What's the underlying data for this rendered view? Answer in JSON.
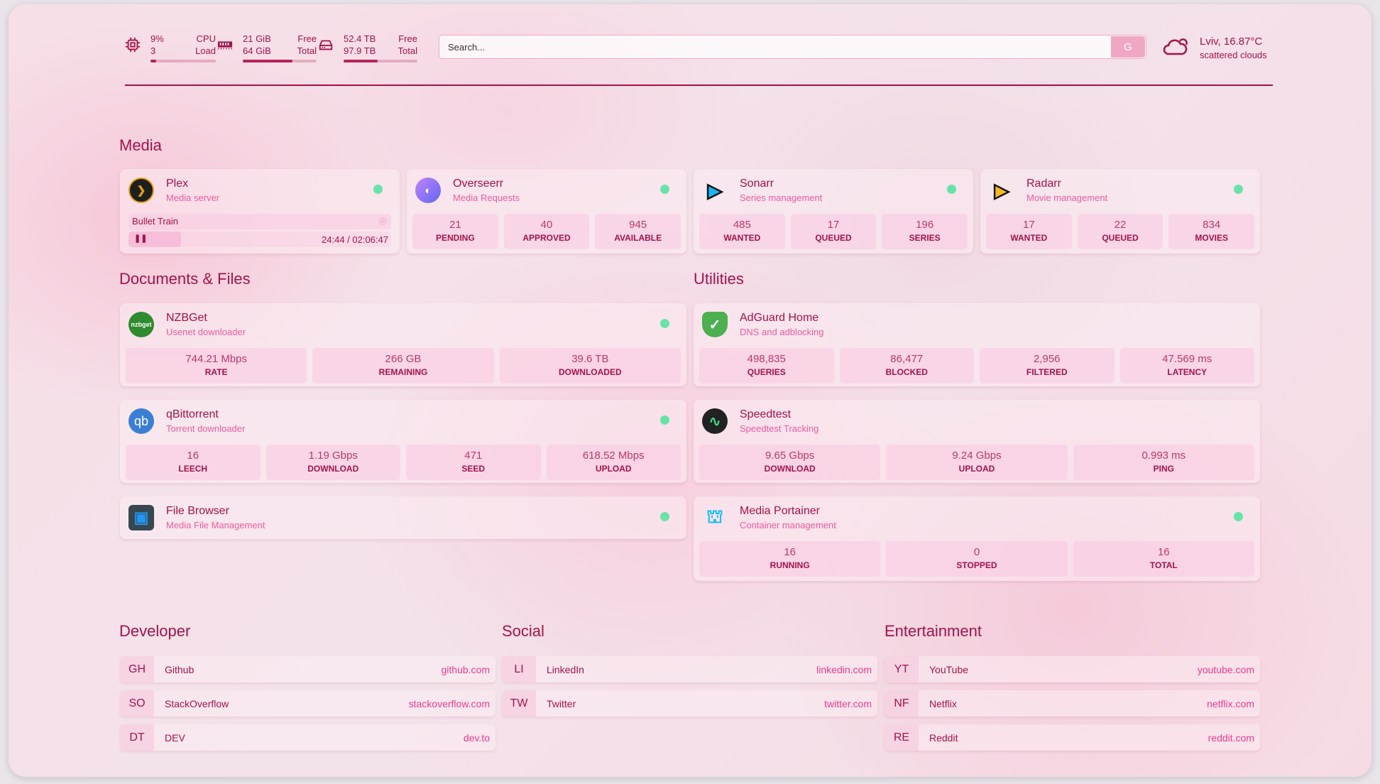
{
  "resources": {
    "cpu": {
      "icon": "cpu-icon",
      "value1": "9%",
      "value2": "3",
      "label1": "CPU",
      "label2": "Load",
      "percent": 9
    },
    "memory": {
      "icon": "memory-icon",
      "value1": "21 GiB",
      "value2": "64 GiB",
      "label1": "Free",
      "label2": "Total",
      "percent": 67
    },
    "disk": {
      "icon": "disk-icon",
      "value1": "52.4 TB",
      "value2": "97.9 TB",
      "label1": "Free",
      "label2": "Total",
      "percent": 46
    }
  },
  "search": {
    "placeholder": "Search...",
    "button": "G"
  },
  "weather": {
    "icon": "cloud-icon",
    "location_temp": "Lviv, 16.87°C",
    "condition": "scattered clouds"
  },
  "colors": {
    "accent": "#a3124a",
    "subtitle": "#ec5ba0",
    "status_ok": "#68e3a8"
  },
  "sections": {
    "media": "Media",
    "documents": "Documents & Files",
    "utilities": "Utilities",
    "developer": "Developer",
    "social": "Social",
    "entertainment": "Entertainment"
  },
  "media": [
    {
      "name": "Plex",
      "desc": "Media server",
      "icon": "plex-icon",
      "status": true,
      "now_playing": {
        "title": "Bullet Train",
        "time": "24:44 / 02:06:47",
        "progress": 20
      }
    },
    {
      "name": "Overseerr",
      "desc": "Media Requests",
      "icon": "overseerr-icon",
      "status": true,
      "stats": [
        {
          "value": "21",
          "label": "PENDING"
        },
        {
          "value": "40",
          "label": "APPROVED"
        },
        {
          "value": "945",
          "label": "AVAILABLE"
        }
      ]
    },
    {
      "name": "Sonarr",
      "desc": "Series management",
      "icon": "sonarr-icon",
      "status": true,
      "stats": [
        {
          "value": "485",
          "label": "WANTED"
        },
        {
          "value": "17",
          "label": "QUEUED"
        },
        {
          "value": "196",
          "label": "SERIES"
        }
      ]
    },
    {
      "name": "Radarr",
      "desc": "Movie management",
      "icon": "radarr-icon",
      "status": true,
      "stats": [
        {
          "value": "17",
          "label": "WANTED"
        },
        {
          "value": "22",
          "label": "QUEUED"
        },
        {
          "value": "834",
          "label": "MOVIES"
        }
      ]
    }
  ],
  "documents": [
    {
      "name": "NZBGet",
      "desc": "Usenet downloader",
      "icon": "nzbget-icon",
      "icon_text": "nzbget",
      "status": true,
      "stats": [
        {
          "value": "744.21 Mbps",
          "label": "RATE"
        },
        {
          "value": "266 GB",
          "label": "REMAINING"
        },
        {
          "value": "39.6 TB",
          "label": "DOWNLOADED"
        }
      ]
    },
    {
      "name": "qBittorrent",
      "desc": "Torrent downloader",
      "icon": "qbittorrent-icon",
      "icon_text": "qb",
      "status": true,
      "stats": [
        {
          "value": "16",
          "label": "LEECH"
        },
        {
          "value": "1.19 Gbps",
          "label": "DOWNLOAD"
        },
        {
          "value": "471",
          "label": "SEED"
        },
        {
          "value": "618.52 Mbps",
          "label": "UPLOAD"
        }
      ]
    },
    {
      "name": "File Browser",
      "desc": "Media File Management",
      "icon": "file-browser-icon",
      "status": true
    }
  ],
  "utilities": [
    {
      "name": "AdGuard Home",
      "desc": "DNS and adblocking",
      "icon": "adguard-shield-icon",
      "status": false,
      "stats": [
        {
          "value": "498,835",
          "label": "QUERIES"
        },
        {
          "value": "86,477",
          "label": "BLOCKED"
        },
        {
          "value": "2,956",
          "label": "FILTERED"
        },
        {
          "value": "47.569 ms",
          "label": "LATENCY"
        }
      ]
    },
    {
      "name": "Speedtest",
      "desc": "Speedtest Tracking",
      "icon": "speedtest-icon",
      "status": false,
      "stats": [
        {
          "value": "9.65 Gbps",
          "label": "DOWNLOAD"
        },
        {
          "value": "9.24 Gbps",
          "label": "UPLOAD"
        },
        {
          "value": "0.993 ms",
          "label": "PING"
        }
      ]
    },
    {
      "name": "Media Portainer",
      "desc": "Container management",
      "icon": "portainer-icon",
      "status": true,
      "stats": [
        {
          "value": "16",
          "label": "RUNNING"
        },
        {
          "value": "0",
          "label": "STOPPED"
        },
        {
          "value": "16",
          "label": "TOTAL"
        }
      ]
    }
  ],
  "bookmarks": {
    "developer": [
      {
        "abbr": "GH",
        "name": "Github",
        "url": "github.com"
      },
      {
        "abbr": "SO",
        "name": "StackOverflow",
        "url": "stackoverflow.com"
      },
      {
        "abbr": "DT",
        "name": "DEV",
        "url": "dev.to"
      }
    ],
    "social": [
      {
        "abbr": "LI",
        "name": "LinkedIn",
        "url": "linkedin.com"
      },
      {
        "abbr": "TW",
        "name": "Twitter",
        "url": "twitter.com"
      }
    ],
    "entertainment": [
      {
        "abbr": "YT",
        "name": "YouTube",
        "url": "youtube.com"
      },
      {
        "abbr": "NF",
        "name": "Netflix",
        "url": "netflix.com"
      },
      {
        "abbr": "RE",
        "name": "Reddit",
        "url": "reddit.com"
      }
    ]
  }
}
